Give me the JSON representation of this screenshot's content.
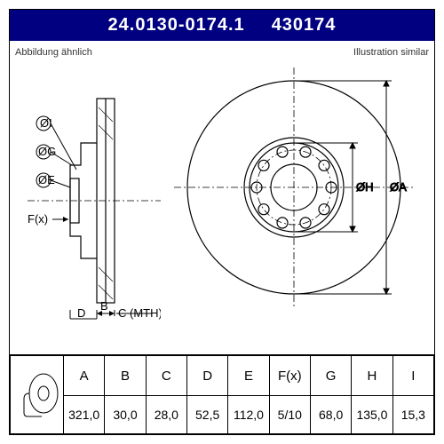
{
  "header": {
    "part_number": "24.0130-0174.1",
    "short_code": "430174"
  },
  "subtitle": {
    "left": "Abbildung ähnlich",
    "right": "Illustration similar"
  },
  "dimension_labels": {
    "A": "ØA",
    "H": "ØH",
    "G": "ØG",
    "E": "ØE",
    "I": "ØI",
    "F": "F(x)",
    "B": "B",
    "D": "D",
    "C": "C (MTH)"
  },
  "columns": [
    "A",
    "B",
    "C",
    "D",
    "E",
    "F(x)",
    "G",
    "H",
    "I"
  ],
  "values": [
    "321,0",
    "30,0",
    "28,0",
    "52,5",
    "112,0",
    "5/10",
    "68,0",
    "135,0",
    "15,3"
  ],
  "styling": {
    "header_bg": "#000080",
    "header_fg": "#ffffff",
    "line_color": "#000000",
    "centerline_color": "#000000",
    "background": "#ffffff",
    "font_family": "Arial",
    "title_fontsize": 20,
    "label_fontsize": 13,
    "table_fontsize": 14
  },
  "front_view": {
    "outer_r": 120,
    "hub_r": 56,
    "h_r": 50,
    "bolt_circle_r": 42,
    "bore_r": 26,
    "bolt_hole_r": 6,
    "bolt_count": 10,
    "bolt_start_deg": 0
  }
}
